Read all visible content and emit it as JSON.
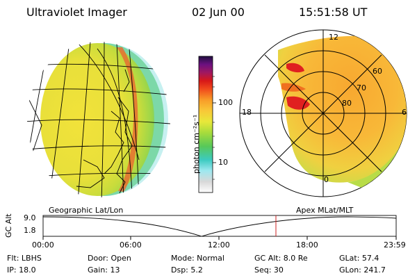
{
  "header": {
    "instrument": "Ultraviolet Imager",
    "date": "02 Jun 00",
    "time": "15:51:58 UT"
  },
  "colorbar": {
    "unit_label": "photon cm⁻²s⁻¹",
    "ticks": [
      "100",
      "10"
    ]
  },
  "geo_panel": {
    "label": "Geographic Lat/Lon"
  },
  "polar_panel": {
    "label": "Apex MLat/MLT",
    "mlt_labels": [
      "12",
      "18",
      "6",
      "0"
    ],
    "lat_labels": [
      "60",
      "70",
      "80"
    ]
  },
  "altitude_plot": {
    "ylabel": "GC Alt",
    "y_ticks": [
      "9.0",
      "1.8"
    ],
    "x_ticks": [
      "00:00",
      "06:00",
      "12:00",
      "18:00",
      "23:59"
    ],
    "marker_time": "15:51:58"
  },
  "status": {
    "flt": "Flt: LBHS",
    "ip": "IP: 18.0",
    "door": "Door: Open",
    "gain": "Gain: 13",
    "mode": "Mode: Normal",
    "dsp": "Dsp:    5.2",
    "gc_alt": "GC Alt: 8.0 Re",
    "seq": "Seq: 30",
    "glat": "GLat:  57.4",
    "glon": "GLon: 241.7"
  },
  "colors": {
    "marker": "#cc2222",
    "background": "#ffffff"
  }
}
